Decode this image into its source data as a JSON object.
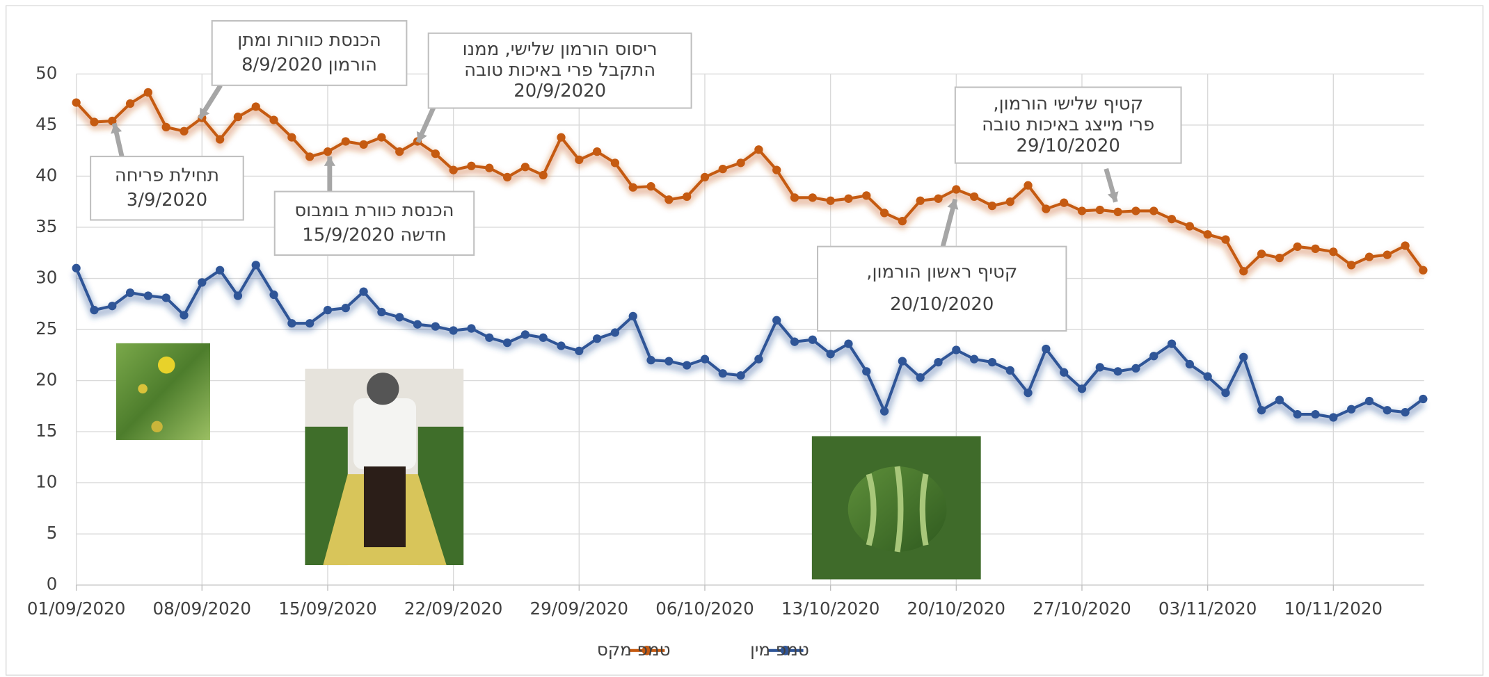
{
  "chart_data": {
    "type": "line",
    "x": [
      "01/09/2020",
      "02/09/2020",
      "03/09/2020",
      "04/09/2020",
      "05/09/2020",
      "06/09/2020",
      "07/09/2020",
      "08/09/2020",
      "09/09/2020",
      "10/09/2020",
      "11/09/2020",
      "12/09/2020",
      "13/09/2020",
      "14/09/2020",
      "15/09/2020",
      "16/09/2020",
      "17/09/2020",
      "18/09/2020",
      "19/09/2020",
      "20/09/2020",
      "21/09/2020",
      "22/09/2020",
      "23/09/2020",
      "24/09/2020",
      "25/09/2020",
      "26/09/2020",
      "27/09/2020",
      "28/09/2020",
      "29/09/2020",
      "30/09/2020",
      "01/10/2020",
      "02/10/2020",
      "03/10/2020",
      "04/10/2020",
      "05/10/2020",
      "06/10/2020",
      "07/10/2020",
      "08/10/2020",
      "09/10/2020",
      "10/10/2020",
      "11/10/2020",
      "12/10/2020",
      "13/10/2020",
      "14/10/2020",
      "15/10/2020",
      "16/10/2020",
      "17/10/2020",
      "18/10/2020",
      "19/10/2020",
      "20/10/2020",
      "21/10/2020",
      "22/10/2020",
      "23/10/2020",
      "24/10/2020",
      "25/10/2020",
      "26/10/2020",
      "27/10/2020",
      "28/10/2020",
      "29/10/2020",
      "30/10/2020",
      "31/10/2020",
      "01/11/2020",
      "02/11/2020",
      "03/11/2020",
      "04/11/2020",
      "05/11/2020",
      "06/11/2020",
      "07/11/2020",
      "08/11/2020",
      "09/11/2020",
      "10/11/2020",
      "11/11/2020",
      "12/11/2020",
      "13/11/2020",
      "14/11/2020",
      "15/11/2020"
    ],
    "series": [
      {
        "name": "טמפ מקס",
        "color": "#c55a11",
        "values": [
          47.2,
          45.3,
          45.4,
          47.1,
          48.2,
          44.8,
          44.4,
          45.7,
          43.6,
          45.8,
          46.8,
          45.5,
          43.8,
          41.9,
          42.4,
          43.4,
          43.1,
          43.8,
          42.4,
          43.4,
          42.2,
          40.6,
          41.0,
          40.8,
          39.9,
          40.9,
          40.1,
          43.8,
          41.6,
          42.4,
          41.3,
          38.9,
          39.0,
          37.7,
          38.0,
          39.9,
          40.7,
          41.3,
          42.6,
          40.6,
          37.9,
          37.9,
          37.6,
          37.8,
          38.1,
          36.4,
          35.6,
          37.6,
          37.8,
          38.7,
          38.0,
          37.1,
          37.5,
          39.1,
          36.8,
          37.4,
          36.6,
          36.7,
          36.5,
          36.6,
          36.6,
          35.8,
          35.1,
          34.3,
          33.8,
          30.7,
          32.4,
          32.0,
          33.1,
          32.9,
          32.6,
          31.3,
          32.1,
          32.3,
          33.2,
          30.8
        ]
      },
      {
        "name": "טמפ מין",
        "color": "#2f5597",
        "values": [
          31.0,
          26.9,
          27.3,
          28.6,
          28.3,
          28.1,
          26.4,
          29.6,
          30.8,
          28.3,
          31.3,
          28.4,
          25.6,
          25.6,
          26.9,
          27.1,
          28.7,
          26.7,
          26.2,
          25.5,
          25.3,
          24.9,
          25.1,
          24.2,
          23.7,
          24.5,
          24.2,
          23.4,
          22.9,
          24.1,
          24.7,
          26.3,
          22.0,
          21.9,
          21.5,
          22.1,
          20.7,
          20.5,
          22.1,
          25.9,
          23.8,
          24.0,
          22.6,
          23.6,
          20.9,
          17.0,
          21.9,
          20.3,
          21.8,
          23.0,
          22.1,
          21.8,
          21.0,
          18.8,
          23.1,
          20.8,
          19.2,
          21.3,
          20.9,
          21.2,
          22.4,
          23.6,
          21.6,
          20.4,
          18.8,
          22.3,
          17.1,
          18.1,
          16.7,
          16.7,
          16.4,
          17.2,
          18.0,
          17.1,
          16.9,
          18.2
        ]
      }
    ],
    "xlim": [
      "01/09/2020",
      "15/11/2020"
    ],
    "xticks": [
      "01/09/2020",
      "08/09/2020",
      "15/09/2020",
      "22/09/2020",
      "29/09/2020",
      "06/10/2020",
      "13/10/2020",
      "20/10/2020",
      "27/10/2020",
      "03/11/2020",
      "10/11/2020"
    ],
    "ylim": [
      0,
      50
    ],
    "yticks": [
      0,
      5,
      10,
      15,
      20,
      25,
      30,
      35,
      40,
      45,
      50
    ],
    "grid": true,
    "legend": "bottom",
    "annotations": [
      {
        "lines": [
          "תחילת פריחה",
          "3/9/2020"
        ]
      },
      {
        "lines": [
          "הכנסת כוורות ומתן",
          "הורמון 8/9/2020"
        ]
      },
      {
        "lines": [
          "ריסוס הורמון שלישי, ממנו",
          "התקבל פרי באיכות טובה",
          "20/9/2020"
        ]
      },
      {
        "lines": [
          "הכנסת כוורת בומבוס",
          "חדשה 15/9/2020"
        ]
      },
      {
        "lines": [
          "קטיף שלישי הורמון,",
          "פרי מייצג באיכות טובה",
          "29/10/2020"
        ]
      },
      {
        "lines": [
          "קטיף ראשון הורמון,",
          "20/10/2020"
        ]
      }
    ]
  }
}
